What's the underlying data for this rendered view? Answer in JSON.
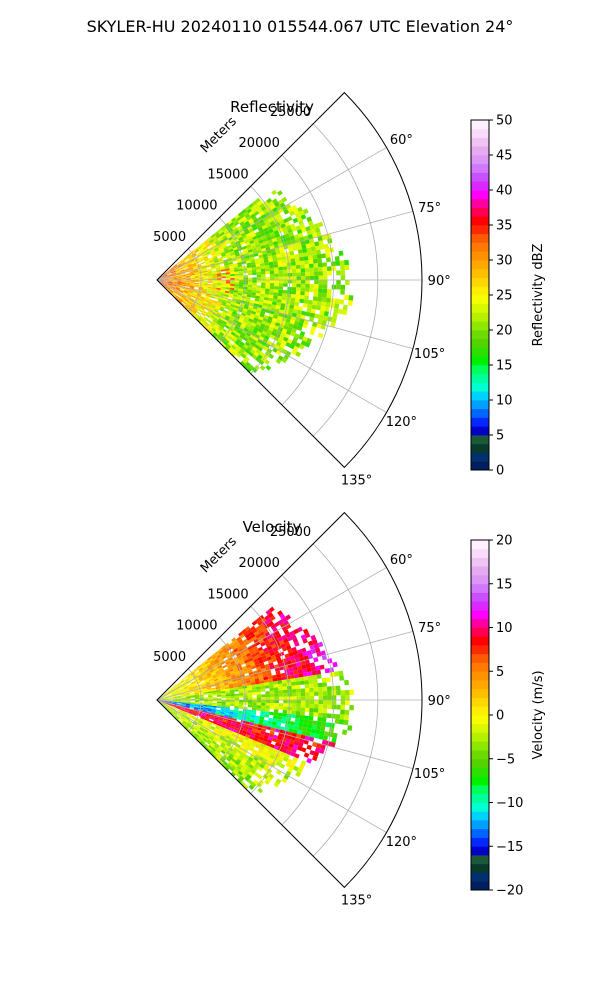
{
  "suptitle": "SKYLER-HU  20240110  015544.067 UTC Elevation 24°",
  "chart_data": [
    {
      "type": "heatmap",
      "title": "Reflectivity",
      "radial_label": "Meters",
      "r_ticks": [
        5000,
        10000,
        15000,
        20000,
        25000
      ],
      "r_tick_labels": [
        "5000",
        "10000",
        "15000",
        "20000",
        "25000"
      ],
      "rlim": [
        0,
        30000
      ],
      "theta_range_deg": [
        45,
        135
      ],
      "theta_ticks": [
        60,
        75,
        90,
        105,
        120,
        135
      ],
      "theta_tick_labels": [
        "60°",
        "75°",
        "90°",
        "105°",
        "120°",
        "135°"
      ],
      "grid": true,
      "colorbar": {
        "label": "Reflectivity dBZ",
        "range": [
          0,
          50
        ],
        "ticks": [
          0,
          5,
          10,
          15,
          20,
          25,
          30,
          35,
          40,
          45,
          50
        ],
        "tick_labels": [
          "0",
          "5",
          "10",
          "15",
          "20",
          "25",
          "30",
          "35",
          "40",
          "45",
          "50"
        ],
        "colors": [
          "#001f5f",
          "#003070",
          "#0a3a2a",
          "#1a5a3a",
          "#0000c8",
          "#0028ff",
          "#0064ff",
          "#00a0ff",
          "#00d2ff",
          "#00ffd2",
          "#00ff9a",
          "#00ff5a",
          "#00f000",
          "#2ee000",
          "#52d400",
          "#6cdc00",
          "#8ee800",
          "#b4f000",
          "#d8f800",
          "#f4ff00",
          "#ffee00",
          "#ffd600",
          "#ffbe00",
          "#ffa800",
          "#ff9200",
          "#ff7a00",
          "#ff5a00",
          "#ff2800",
          "#ff0000",
          "#ff0050",
          "#ff00a0",
          "#ff00ff",
          "#dc28ff",
          "#c850ff",
          "#d278ff",
          "#dc96f5",
          "#e6aaf0",
          "#f0c3f5",
          "#f8dcfa",
          "#fff0ff"
        ]
      }
    },
    {
      "type": "heatmap",
      "title": "Velocity",
      "radial_label": "Meters",
      "r_ticks": [
        5000,
        10000,
        15000,
        20000,
        25000
      ],
      "r_tick_labels": [
        "5000",
        "10000",
        "15000",
        "20000",
        "25000"
      ],
      "rlim": [
        0,
        30000
      ],
      "theta_range_deg": [
        45,
        135
      ],
      "theta_ticks": [
        60,
        75,
        90,
        105,
        120,
        135
      ],
      "theta_tick_labels": [
        "60°",
        "75°",
        "90°",
        "105°",
        "120°",
        "135°"
      ],
      "grid": true,
      "colorbar": {
        "label": "Velocity (m/s)",
        "range": [
          -20,
          20
        ],
        "ticks": [
          -20,
          -15,
          -10,
          -5,
          0,
          5,
          10,
          15,
          20
        ],
        "tick_labels": [
          "−20",
          "−15",
          "−10",
          "−5",
          "0",
          "5",
          "10",
          "15",
          "20"
        ],
        "colors": [
          "#001f5f",
          "#003070",
          "#0a3a2a",
          "#1a5a3a",
          "#0000c8",
          "#0028ff",
          "#0064ff",
          "#00a0ff",
          "#00d2ff",
          "#00ffd2",
          "#00ff9a",
          "#00ff5a",
          "#00f000",
          "#2ee000",
          "#52d400",
          "#6cdc00",
          "#8ee800",
          "#b4f000",
          "#d8f800",
          "#f4ff00",
          "#ffee00",
          "#ffd600",
          "#ffbe00",
          "#ffa800",
          "#ff9200",
          "#ff7a00",
          "#ff5a00",
          "#ff2800",
          "#ff0000",
          "#ff0050",
          "#ff00a0",
          "#ff00ff",
          "#dc28ff",
          "#c850ff",
          "#d278ff",
          "#dc96f5",
          "#e6aaf0",
          "#f0c3f5",
          "#f8dcfa",
          "#fff0ff"
        ]
      }
    }
  ]
}
